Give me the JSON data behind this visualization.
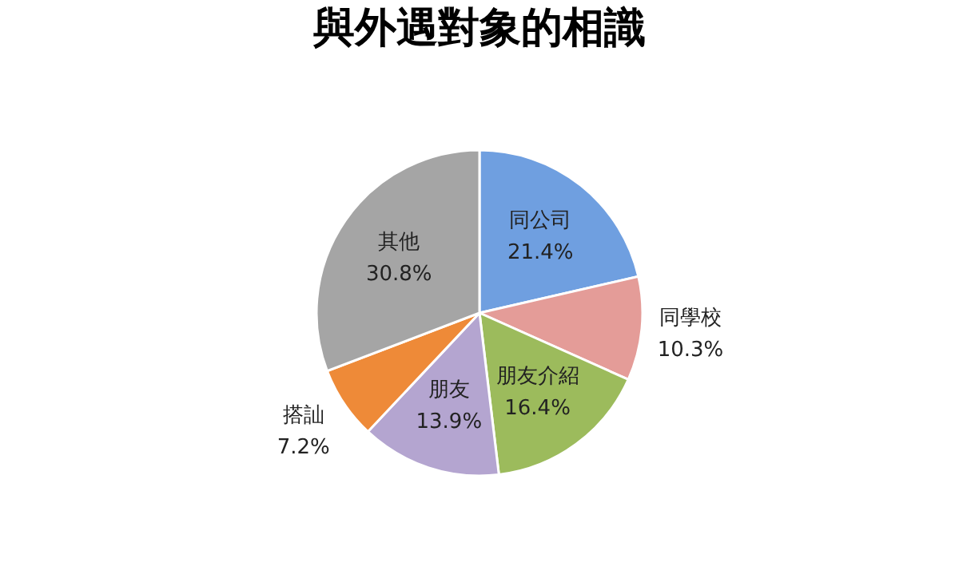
{
  "chart_data": {
    "type": "pie",
    "title": "與外遇對象的相識",
    "categories": [
      "同公司",
      "同學校",
      "朋友介紹",
      "朋友",
      "搭訕",
      "其他"
    ],
    "values": [
      21.4,
      10.3,
      16.4,
      13.9,
      7.2,
      30.8
    ],
    "value_labels": [
      "21.4%",
      "10.3%",
      "16.4%",
      "13.9%",
      "7.2%",
      "30.8%"
    ],
    "colors": [
      "#6f9fe0",
      "#e49c98",
      "#9cbb5c",
      "#b4a5d0",
      "#ee8a38",
      "#a5a5a5"
    ],
    "legend": false
  }
}
